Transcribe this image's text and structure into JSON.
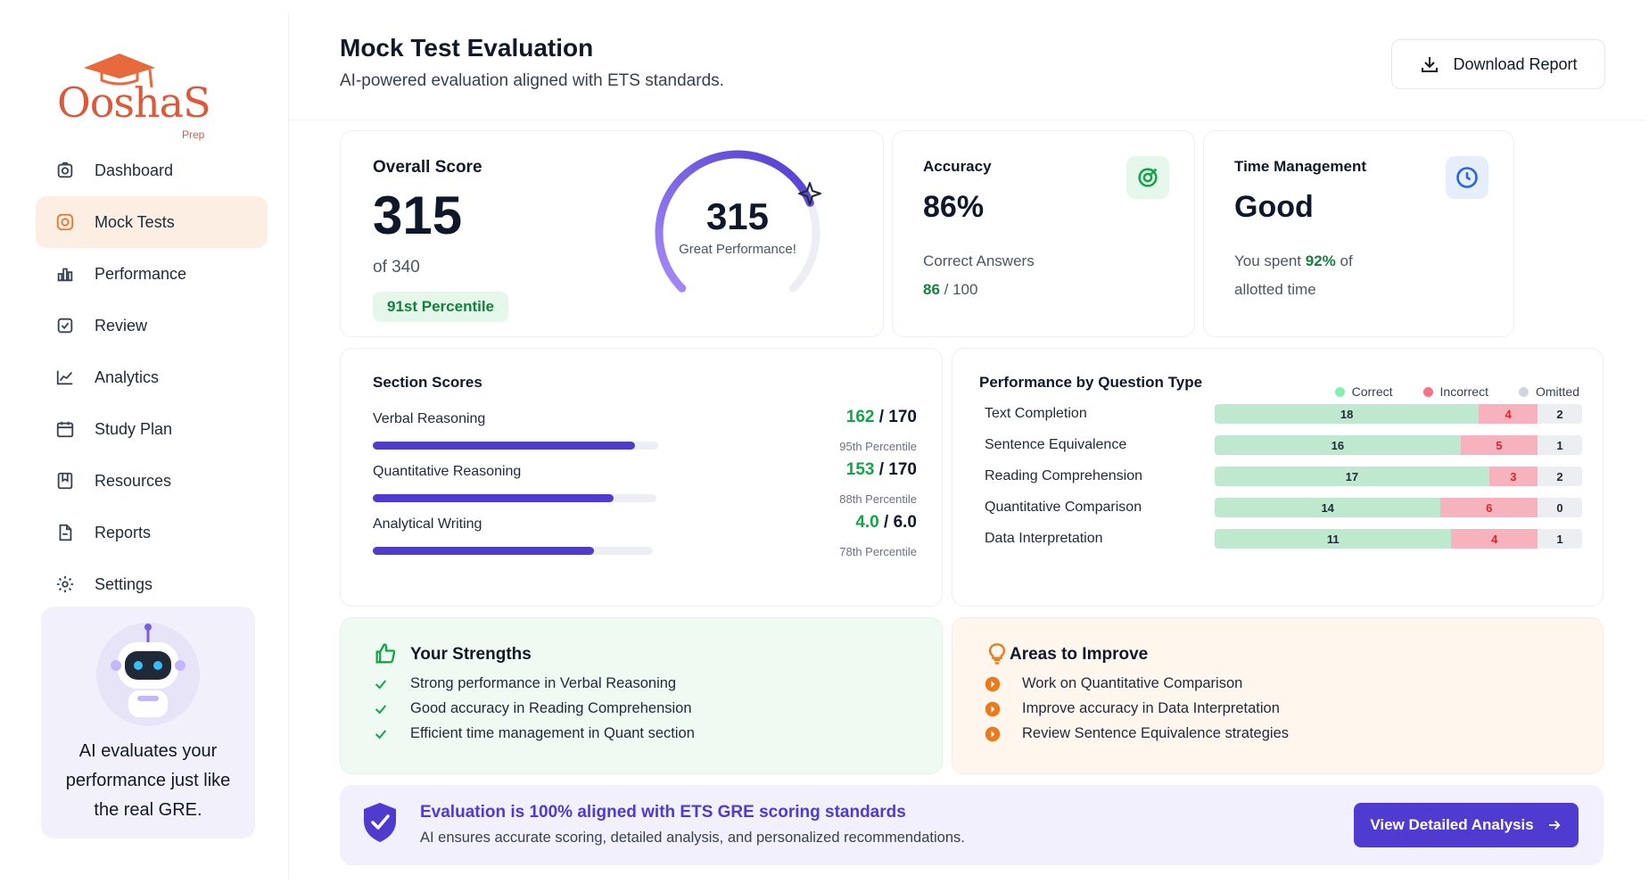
{
  "brand": {
    "name": "OoshaS",
    "sub": "Prep",
    "accent": "#dc5a3c"
  },
  "sidebar": {
    "items": [
      {
        "label": "Dashboard",
        "icon": "camera-icon"
      },
      {
        "label": "Mock Tests",
        "icon": "target-icon",
        "active": true
      },
      {
        "label": "Performance",
        "icon": "bar-chart-icon"
      },
      {
        "label": "Review",
        "icon": "checkbox-icon"
      },
      {
        "label": "Analytics",
        "icon": "line-chart-icon"
      },
      {
        "label": "Study Plan",
        "icon": "calendar-icon"
      },
      {
        "label": "Resources",
        "icon": "bookmark-icon"
      },
      {
        "label": "Reports",
        "icon": "document-icon"
      },
      {
        "label": "Settings",
        "icon": "gear-icon"
      }
    ],
    "ai_card": {
      "text": "AI evaluates your performance just like the real GRE.",
      "icon": "robot-icon"
    }
  },
  "header": {
    "title": "Mock Test Evaluation",
    "subtitle": "AI-powered evaluation aligned with ETS standards.",
    "download_label": "Download Report"
  },
  "overall": {
    "title": "Overall Score",
    "score": "315",
    "of": "of 340",
    "percentile": "91st Percentile",
    "gauge_value": "315",
    "gauge_label": "Great Performance!",
    "gauge_fraction": 0.75
  },
  "accuracy": {
    "title": "Accuracy",
    "value": "86%",
    "label": "Correct Answers",
    "correct": "86",
    "total": "/ 100"
  },
  "time": {
    "title": "Time Management",
    "value": "Good",
    "text_pre": "You spent",
    "percent": "92%",
    "text_post": "of",
    "text_line2": "allotted time"
  },
  "sections": {
    "title": "Section Scores",
    "items": [
      {
        "name": "Verbal Reasoning",
        "score": "162",
        "max": "/ 170",
        "percentile": "95th Percentile",
        "fill": 0.92
      },
      {
        "name": "Quantitative Reasoning",
        "score": "153",
        "max": "/ 170",
        "percentile": "88th Percentile",
        "fill": 0.85
      },
      {
        "name": "Analytical Writing",
        "score": "4.0",
        "max": "/ 6.0",
        "percentile": "78th Percentile",
        "fill": 0.79
      }
    ]
  },
  "question_types": {
    "title": "Performance by Question Type",
    "legend": [
      "Correct",
      "Incorrect",
      "Omitted"
    ],
    "colors": {
      "correct": "#bfe9ce",
      "incorrect": "#f7b3bd",
      "omitted": "#eceef1"
    },
    "rows": [
      {
        "name": "Text Completion",
        "correct": 18,
        "incorrect": 4,
        "omitted": 2
      },
      {
        "name": "Sentence Equivalence",
        "correct": 16,
        "incorrect": 5,
        "omitted": 1
      },
      {
        "name": "Reading Comprehension",
        "correct": 17,
        "incorrect": 3,
        "omitted": 2
      },
      {
        "name": "Quantitative Comparison",
        "correct": 14,
        "incorrect": 6,
        "omitted": 0
      },
      {
        "name": "Data Interpretation",
        "correct": 11,
        "incorrect": 4,
        "omitted": 1
      }
    ]
  },
  "strengths": {
    "title": "Your Strengths",
    "items": [
      "Strong performance in Verbal Reasoning",
      "Good accuracy in Reading Comprehension",
      "Efficient time management in Quant section"
    ]
  },
  "improve": {
    "title": "Areas to Improve",
    "items": [
      "Work on Quantitative Comparison",
      "Improve accuracy in Data Interpretation",
      "Review Sentence Equivalence strategies"
    ]
  },
  "banner": {
    "title": "Evaluation is 100% aligned with ETS GRE scoring standards",
    "subtitle": "AI ensures accurate scoring, detailed analysis, and personalized recommendations.",
    "cta": "View Detailed Analysis"
  }
}
